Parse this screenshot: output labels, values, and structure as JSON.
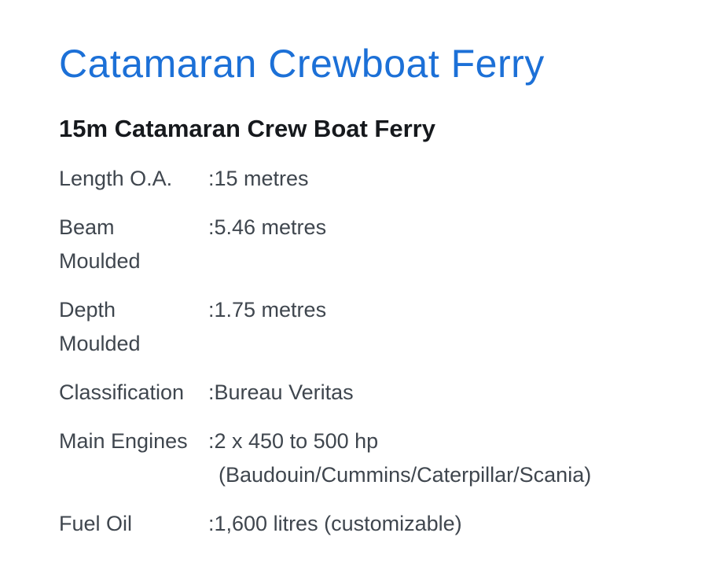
{
  "colors": {
    "background": "#ffffff",
    "title_blue": "#1c70d7",
    "body_text": "#3f464e",
    "heading_text": "#16191d"
  },
  "header": {
    "title": "Catamaran Crewboat Ferry",
    "subtitle": "15m Catamaran Crew Boat Ferry"
  },
  "specs": [
    {
      "label": "Length O.A.",
      "value": ":15 metres"
    },
    {
      "label": "Beam\nMoulded",
      "value": ":5.46 metres"
    },
    {
      "label": "Depth\nMoulded",
      "value": ":1.75 metres"
    },
    {
      "label": "Classification",
      "value": ":Bureau Veritas"
    },
    {
      "label": "Main Engines",
      "value": ":2 x 450 to 500 hp\n(Baudouin/Cummins/Caterpillar/Scania)"
    },
    {
      "label": "Fuel Oil",
      "value": ":1,600 litres (customizable)"
    }
  ]
}
